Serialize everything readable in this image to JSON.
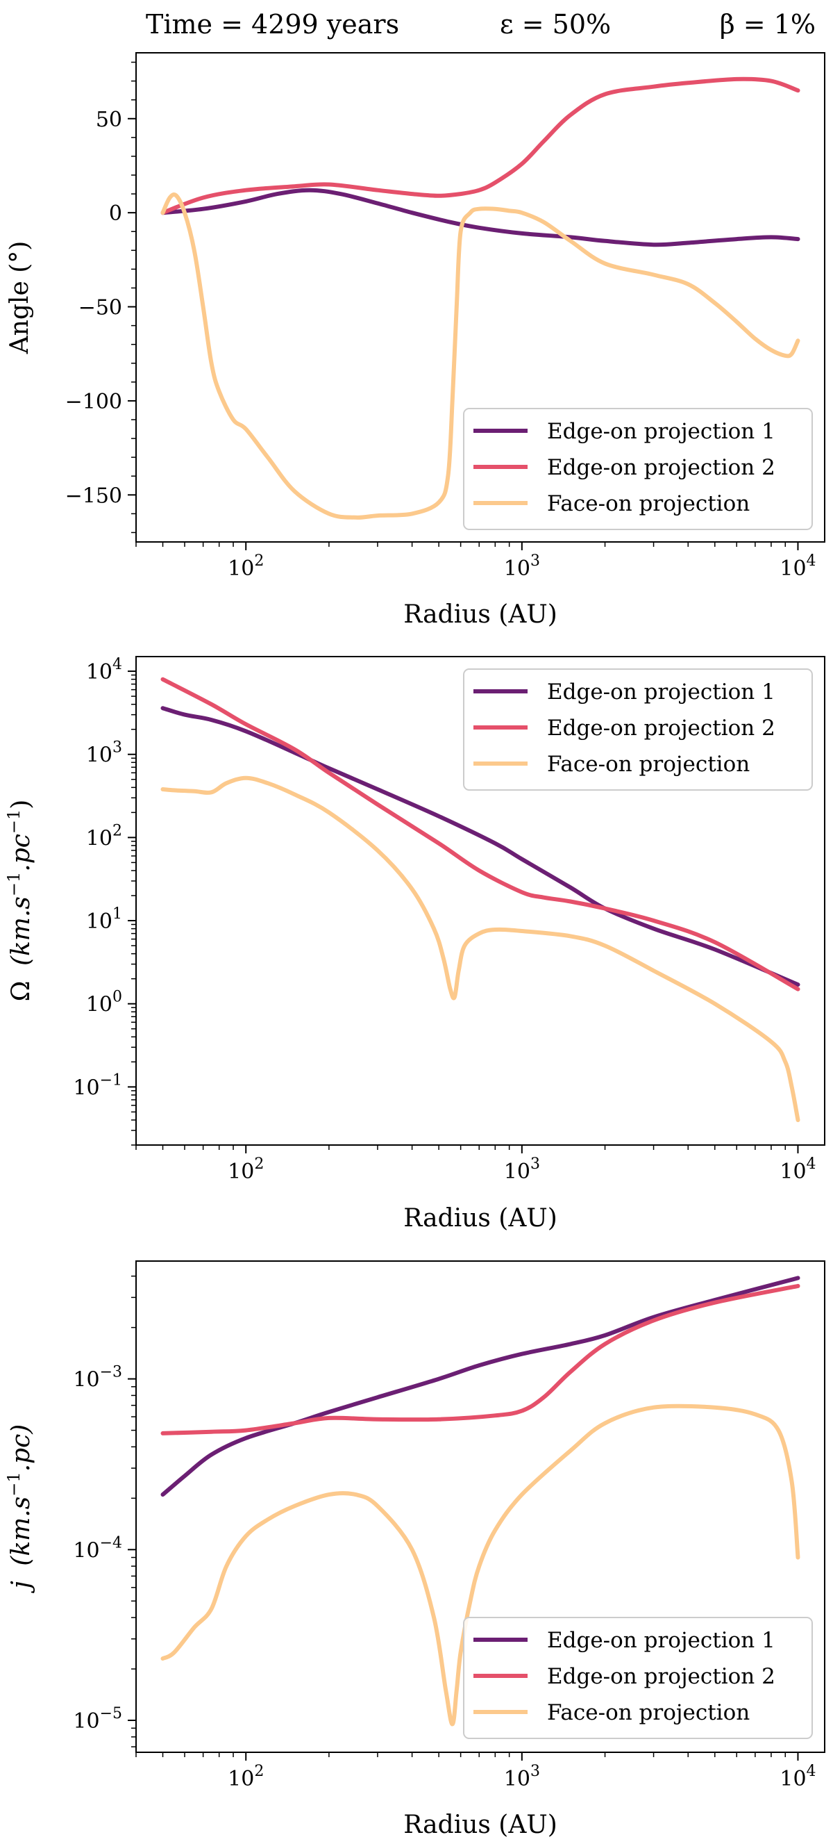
{
  "header": {
    "time": "Time = 4299 years",
    "epsilon": "ε = 50%",
    "beta": "β = 1%"
  },
  "colors": {
    "edge1": "#6b1f73",
    "edge2": "#e5506a",
    "face": "#fcc98c"
  },
  "chart_data": [
    {
      "id": "angle",
      "type": "line",
      "xscale": "log",
      "yscale": "linear",
      "xlim": [
        40,
        12500
      ],
      "ylim": [
        -175,
        85
      ],
      "xlabel": "Radius (AU)",
      "ylabel": "Angle (°)",
      "xticks": [
        {
          "value": 100,
          "base": "10",
          "exp": "2"
        },
        {
          "value": 1000,
          "base": "10",
          "exp": "3"
        },
        {
          "value": 10000,
          "base": "10",
          "exp": "4"
        }
      ],
      "yticks": [
        {
          "value": 50,
          "label": "50"
        },
        {
          "value": 0,
          "label": "0"
        },
        {
          "value": -50,
          "label": "−50"
        },
        {
          "value": -100,
          "label": "−100"
        },
        {
          "value": -150,
          "label": "−150"
        }
      ],
      "legend_position": "lower-right",
      "series": [
        {
          "name": "Edge-on projection 1",
          "color_key": "edge1",
          "x": [
            50,
            70,
            100,
            130,
            170,
            220,
            300,
            400,
            550,
            700,
            1000,
            1500,
            2000,
            3000,
            4000,
            6000,
            8000,
            10000
          ],
          "y": [
            0,
            2,
            6,
            10,
            12,
            10,
            5,
            0,
            -5,
            -8,
            -11,
            -13,
            -15,
            -17,
            -16,
            -14,
            -13,
            -14
          ]
        },
        {
          "name": "Edge-on projection 2",
          "color_key": "edge2",
          "x": [
            50,
            70,
            100,
            150,
            200,
            300,
            400,
            500,
            600,
            700,
            800,
            1000,
            1200,
            1500,
            2000,
            3000,
            4000,
            6000,
            8000,
            10000
          ],
          "y": [
            0,
            8,
            12,
            14,
            15,
            12,
            10,
            9,
            10,
            12,
            16,
            26,
            38,
            52,
            63,
            67,
            69,
            71,
            70,
            65
          ]
        },
        {
          "name": "Face-on projection",
          "color_key": "face",
          "x": [
            50,
            53,
            56,
            60,
            65,
            70,
            75,
            80,
            90,
            100,
            120,
            150,
            200,
            250,
            300,
            400,
            500,
            540,
            560,
            580,
            600,
            650,
            700,
            800,
            900,
            1000,
            1200,
            1500,
            2000,
            3000,
            4000,
            5000,
            6000,
            7000,
            8000,
            9000,
            9500,
            10000
          ],
          "y": [
            0,
            8,
            9,
            0,
            -20,
            -50,
            -80,
            -95,
            -110,
            -115,
            -130,
            -148,
            -160,
            -162,
            -161,
            -160,
            -154,
            -140,
            -100,
            -50,
            -10,
            0,
            2,
            2,
            1,
            0,
            -5,
            -15,
            -27,
            -33,
            -38,
            -48,
            -58,
            -67,
            -73,
            -76,
            -75,
            -68
          ]
        }
      ]
    },
    {
      "id": "omega",
      "type": "line",
      "xscale": "log",
      "yscale": "log",
      "xlim": [
        40,
        12500
      ],
      "ylim": [
        0.02,
        15000
      ],
      "xlabel": "Radius (AU)",
      "ylabel": "Ω (km.s⁻¹.pc⁻¹)",
      "ylabel_parts": {
        "omega": "Ω",
        "body": "(km.s",
        "sup1": "−1",
        "dot": ".pc",
        "sup2": "−1",
        "close": ")"
      },
      "xticks": [
        {
          "value": 100,
          "base": "10",
          "exp": "2"
        },
        {
          "value": 1000,
          "base": "10",
          "exp": "3"
        },
        {
          "value": 10000,
          "base": "10",
          "exp": "4"
        }
      ],
      "yticks": [
        {
          "value": 10000,
          "base": "10",
          "exp": "4"
        },
        {
          "value": 1000,
          "base": "10",
          "exp": "3"
        },
        {
          "value": 100,
          "base": "10",
          "exp": "2"
        },
        {
          "value": 10,
          "base": "10",
          "exp": "1"
        },
        {
          "value": 1,
          "base": "10",
          "exp": "0"
        },
        {
          "value": 0.1,
          "base": "10",
          "exp": "−1"
        }
      ],
      "legend_position": "upper-right",
      "series": [
        {
          "name": "Edge-on projection 1",
          "color_key": "edge1",
          "x": [
            50,
            60,
            75,
            100,
            150,
            200,
            300,
            500,
            800,
            1000,
            1500,
            2000,
            3000,
            5000,
            10000
          ],
          "y": [
            3600,
            3000,
            2600,
            1900,
            1050,
            680,
            380,
            180,
            85,
            55,
            25,
            14,
            8,
            4.5,
            1.7
          ]
        },
        {
          "name": "Edge-on projection 2",
          "color_key": "edge2",
          "x": [
            50,
            75,
            100,
            150,
            200,
            300,
            500,
            700,
            1000,
            1200,
            1500,
            2000,
            3000,
            5000,
            10000
          ],
          "y": [
            8000,
            4000,
            2300,
            1150,
            600,
            250,
            85,
            40,
            22,
            19,
            17,
            14,
            10,
            5.5,
            1.5
          ]
        },
        {
          "name": "Face-on projection",
          "color_key": "face",
          "x": [
            50,
            55,
            65,
            75,
            85,
            100,
            120,
            150,
            200,
            300,
            400,
            480,
            520,
            550,
            570,
            590,
            620,
            700,
            800,
            1000,
            1500,
            2000,
            3000,
            5000,
            8000,
            9000,
            9500,
            10000
          ],
          "y": [
            380,
            370,
            360,
            350,
            450,
            520,
            450,
            330,
            200,
            70,
            24,
            8,
            3.5,
            1.5,
            1.2,
            2.5,
            5,
            7,
            7.8,
            7.5,
            6.5,
            5,
            2.5,
            1,
            0.35,
            0.2,
            0.1,
            0.04
          ]
        }
      ]
    },
    {
      "id": "j",
      "type": "line",
      "xscale": "log",
      "yscale": "log",
      "xlim": [
        40,
        12500
      ],
      "ylim": [
        6.5e-06,
        0.0049
      ],
      "xlabel": "Radius (AU)",
      "ylabel": "j (km.s⁻¹.pc)",
      "ylabel_parts": {
        "j": "j",
        "body": "(km.s",
        "sup1": "−1",
        "dot": ".pc)"
      },
      "xticks": [
        {
          "value": 100,
          "base": "10",
          "exp": "2"
        },
        {
          "value": 1000,
          "base": "10",
          "exp": "3"
        },
        {
          "value": 10000,
          "base": "10",
          "exp": "4"
        }
      ],
      "yticks": [
        {
          "value": 0.001,
          "base": "10",
          "exp": "−3"
        },
        {
          "value": 0.0001,
          "base": "10",
          "exp": "−4"
        },
        {
          "value": 1e-05,
          "base": "10",
          "exp": "−5"
        }
      ],
      "legend_position": "lower-right",
      "series": [
        {
          "name": "Edge-on projection 1",
          "color_key": "edge1",
          "x": [
            50,
            60,
            75,
            100,
            150,
            200,
            300,
            500,
            700,
            1000,
            1500,
            2000,
            3000,
            5000,
            10000
          ],
          "y": [
            0.00021,
            0.00027,
            0.00036,
            0.00045,
            0.00055,
            0.00064,
            0.00078,
            0.001,
            0.0012,
            0.0014,
            0.0016,
            0.0018,
            0.0023,
            0.0029,
            0.0039
          ]
        },
        {
          "name": "Edge-on projection 2",
          "color_key": "edge2",
          "x": [
            50,
            75,
            100,
            150,
            200,
            300,
            500,
            800,
            1000,
            1200,
            1500,
            2000,
            3000,
            5000,
            10000
          ],
          "y": [
            0.00048,
            0.00049,
            0.0005,
            0.00055,
            0.00059,
            0.00058,
            0.00058,
            0.00061,
            0.00065,
            0.00078,
            0.0011,
            0.0016,
            0.0022,
            0.0028,
            0.0035
          ]
        },
        {
          "name": "Face-on projection",
          "color_key": "face",
          "x": [
            50,
            55,
            65,
            75,
            85,
            100,
            120,
            150,
            200,
            250,
            300,
            400,
            480,
            530,
            560,
            580,
            600,
            650,
            700,
            800,
            1000,
            1500,
            2000,
            3000,
            5000,
            7000,
            8500,
            9500,
            10000
          ],
          "y": [
            2.3e-05,
            2.5e-05,
            3.5e-05,
            4.5e-05,
            8e-05,
            0.00012,
            0.00015,
            0.00018,
            0.00021,
            0.00021,
            0.00018,
            0.0001,
            4e-05,
            1.5e-05,
            9.5e-06,
            1.5e-05,
            2.5e-05,
            5e-05,
            8e-05,
            0.00013,
            0.00021,
            0.00038,
            0.00055,
            0.00068,
            0.00068,
            0.00062,
            0.0005,
            0.00025,
            9e-05
          ]
        }
      ]
    }
  ]
}
